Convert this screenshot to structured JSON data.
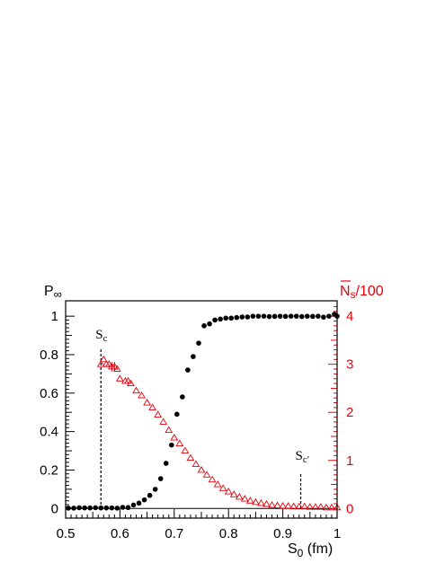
{
  "chart_data": {
    "type": "scatter",
    "x_label_main": "S",
    "x_label_sub": "0",
    "x_label_unit": " (fm)",
    "y_label_left_main": "P",
    "y_label_left_sub": "∞",
    "y_label_right_main": "N",
    "y_label_right_sub": "s",
    "y_label_right_tail": "/100",
    "xlim": [
      0.5,
      1.0
    ],
    "ylim_left": [
      -0.05,
      1.08
    ],
    "ylim_right": [
      -0.2,
      4.32
    ],
    "x_ticks": [
      "0.5",
      "0.6",
      "0.7",
      "0.8",
      "0.9",
      "1"
    ],
    "y_ticks_left": [
      "0",
      "0.2",
      "0.4",
      "0.6",
      "0.8",
      "1"
    ],
    "y_ticks_right": [
      "0",
      "1",
      "2",
      "3",
      "4"
    ],
    "annotations": [
      {
        "main": "S",
        "sub": "c",
        "x": 0.565
      },
      {
        "main": "S",
        "sub": "c′",
        "x": 0.933
      }
    ],
    "colors": {
      "p_inf": "#000000",
      "n_s": "#e8000b"
    },
    "series": [
      {
        "axis": "left",
        "marker": "filled-circle",
        "color": "#000000",
        "points": [
          [
            0.505,
            0.002
          ],
          [
            0.515,
            0.002
          ],
          [
            0.525,
            0.004
          ],
          [
            0.535,
            0.003
          ],
          [
            0.545,
            0.003
          ],
          [
            0.555,
            0.004
          ],
          [
            0.565,
            0.003
          ],
          [
            0.575,
            0.003
          ],
          [
            0.585,
            0.003
          ],
          [
            0.595,
            0.002
          ],
          [
            0.605,
            0.006
          ],
          [
            0.615,
            0.005
          ],
          [
            0.625,
            0.018
          ],
          [
            0.635,
            0.028
          ],
          [
            0.645,
            0.045
          ],
          [
            0.655,
            0.068
          ],
          [
            0.665,
            0.1
          ],
          [
            0.675,
            0.155
          ],
          [
            0.685,
            0.235
          ],
          [
            0.695,
            0.33
          ],
          [
            0.705,
            0.49
          ],
          [
            0.715,
            0.58
          ],
          [
            0.725,
            0.72
          ],
          [
            0.735,
            0.79
          ],
          [
            0.745,
            0.86
          ],
          [
            0.755,
            0.95
          ],
          [
            0.765,
            0.96
          ],
          [
            0.775,
            0.98
          ],
          [
            0.785,
            0.985
          ],
          [
            0.795,
            0.99
          ],
          [
            0.805,
            0.99
          ],
          [
            0.815,
            0.993
          ],
          [
            0.825,
            0.996
          ],
          [
            0.835,
            0.996
          ],
          [
            0.845,
            1.0
          ],
          [
            0.855,
            1.0
          ],
          [
            0.865,
            1.0
          ],
          [
            0.875,
            0.998
          ],
          [
            0.885,
            0.999
          ],
          [
            0.895,
            1.0
          ],
          [
            0.905,
            0.999
          ],
          [
            0.915,
            1.0
          ],
          [
            0.925,
            1.0
          ],
          [
            0.935,
            0.998
          ],
          [
            0.945,
            1.0
          ],
          [
            0.955,
            0.999
          ],
          [
            0.965,
            1.0
          ],
          [
            0.975,
            0.995
          ],
          [
            0.985,
            1.0
          ],
          [
            0.995,
            1.01
          ],
          [
            1.0,
            1.0
          ]
        ]
      },
      {
        "axis": "right",
        "marker": "open-triangle",
        "color": "#e8000b",
        "points": [
          [
            0.565,
            3.0
          ],
          [
            0.57,
            3.1
          ],
          [
            0.575,
            3.0
          ],
          [
            0.58,
            3.0
          ],
          [
            0.585,
            2.95
          ],
          [
            0.59,
            2.95
          ],
          [
            0.595,
            2.9
          ],
          [
            0.6,
            2.7
          ],
          [
            0.61,
            2.65
          ],
          [
            0.615,
            2.65
          ],
          [
            0.62,
            2.6
          ],
          [
            0.63,
            2.45
          ],
          [
            0.64,
            2.35
          ],
          [
            0.65,
            2.2
          ],
          [
            0.66,
            2.1
          ],
          [
            0.67,
            1.95
          ],
          [
            0.68,
            1.8
          ],
          [
            0.69,
            1.63
          ],
          [
            0.7,
            1.47
          ],
          [
            0.71,
            1.35
          ],
          [
            0.72,
            1.2
          ],
          [
            0.73,
            1.05
          ],
          [
            0.74,
            0.92
          ],
          [
            0.75,
            0.8
          ],
          [
            0.76,
            0.7
          ],
          [
            0.77,
            0.6
          ],
          [
            0.78,
            0.5
          ],
          [
            0.79,
            0.42
          ],
          [
            0.8,
            0.35
          ],
          [
            0.81,
            0.29
          ],
          [
            0.82,
            0.24
          ],
          [
            0.83,
            0.2
          ],
          [
            0.84,
            0.16
          ],
          [
            0.85,
            0.13
          ],
          [
            0.86,
            0.11
          ],
          [
            0.87,
            0.09
          ],
          [
            0.88,
            0.07
          ],
          [
            0.89,
            0.06
          ],
          [
            0.9,
            0.05
          ],
          [
            0.91,
            0.05
          ],
          [
            0.92,
            0.04
          ],
          [
            0.93,
            0.04
          ],
          [
            0.94,
            0.04
          ],
          [
            0.95,
            0.03
          ],
          [
            0.96,
            0.03
          ],
          [
            0.97,
            0.03
          ],
          [
            0.98,
            0.02
          ],
          [
            0.99,
            0.02
          ],
          [
            1.0,
            0.02
          ]
        ]
      }
    ]
  }
}
